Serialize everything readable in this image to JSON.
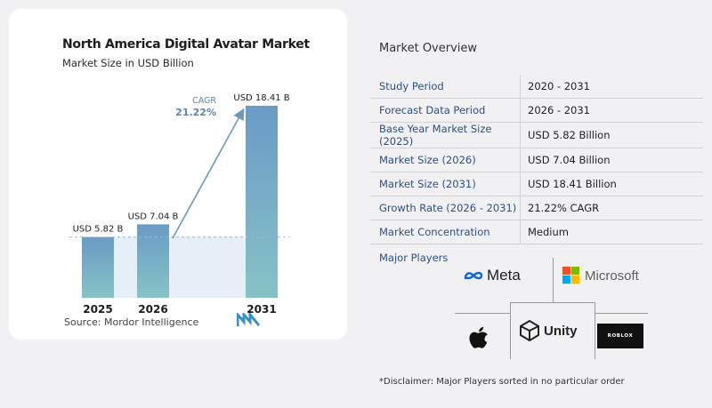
{
  "chart": {
    "title": "North America Digital Avatar Market",
    "subtitle": "Market Size in USD Billion",
    "cagr_label": "CAGR",
    "cagr_value": "21.22%",
    "source": "Source:  Mordor Intelligence"
  },
  "chart_data": {
    "type": "bar",
    "categories": [
      "2025",
      "2026",
      "2031"
    ],
    "values": [
      5.82,
      7.04,
      18.41
    ],
    "data_labels": [
      "USD 5.82 B",
      "USD 7.04 B",
      "USD 18.41 B"
    ],
    "title": "North America Digital Avatar Market",
    "subtitle": "Market Size in USD Billion",
    "xlabel": "",
    "ylabel": "",
    "ylim": [
      0,
      19
    ],
    "grid": false,
    "annotation": {
      "label": "CAGR",
      "value": "21.22%"
    },
    "colors": {
      "bar_top": "#6a9bc6",
      "bar_bottom": "#86c3c6",
      "band": "#e6eef6"
    }
  },
  "overview": {
    "title": "Market Overview",
    "rows": [
      {
        "label": "Study Period",
        "value": "2020 - 2031"
      },
      {
        "label": "Forecast Data Period",
        "value": "2026 - 2031"
      },
      {
        "label": "Base Year Market Size (2025)",
        "value": "USD 5.82 Billion"
      },
      {
        "label": "Market Size (2026)",
        "value": "USD 7.04 Billion"
      },
      {
        "label": "Market Size (2031)",
        "value": "USD 18.41 Billion"
      },
      {
        "label": "Growth Rate (2026 - 2031)",
        "value": "21.22% CAGR"
      },
      {
        "label": "Market Concentration",
        "value": "Medium"
      }
    ]
  },
  "players": {
    "title": "Major Players",
    "meta": "Meta",
    "microsoft": "Microsoft",
    "unity": "Unity",
    "roblox": "ROBLOX",
    "apple_icon": "apple-logo-icon"
  },
  "disclaimer": "*Disclaimer: Major Players sorted in no particular order"
}
